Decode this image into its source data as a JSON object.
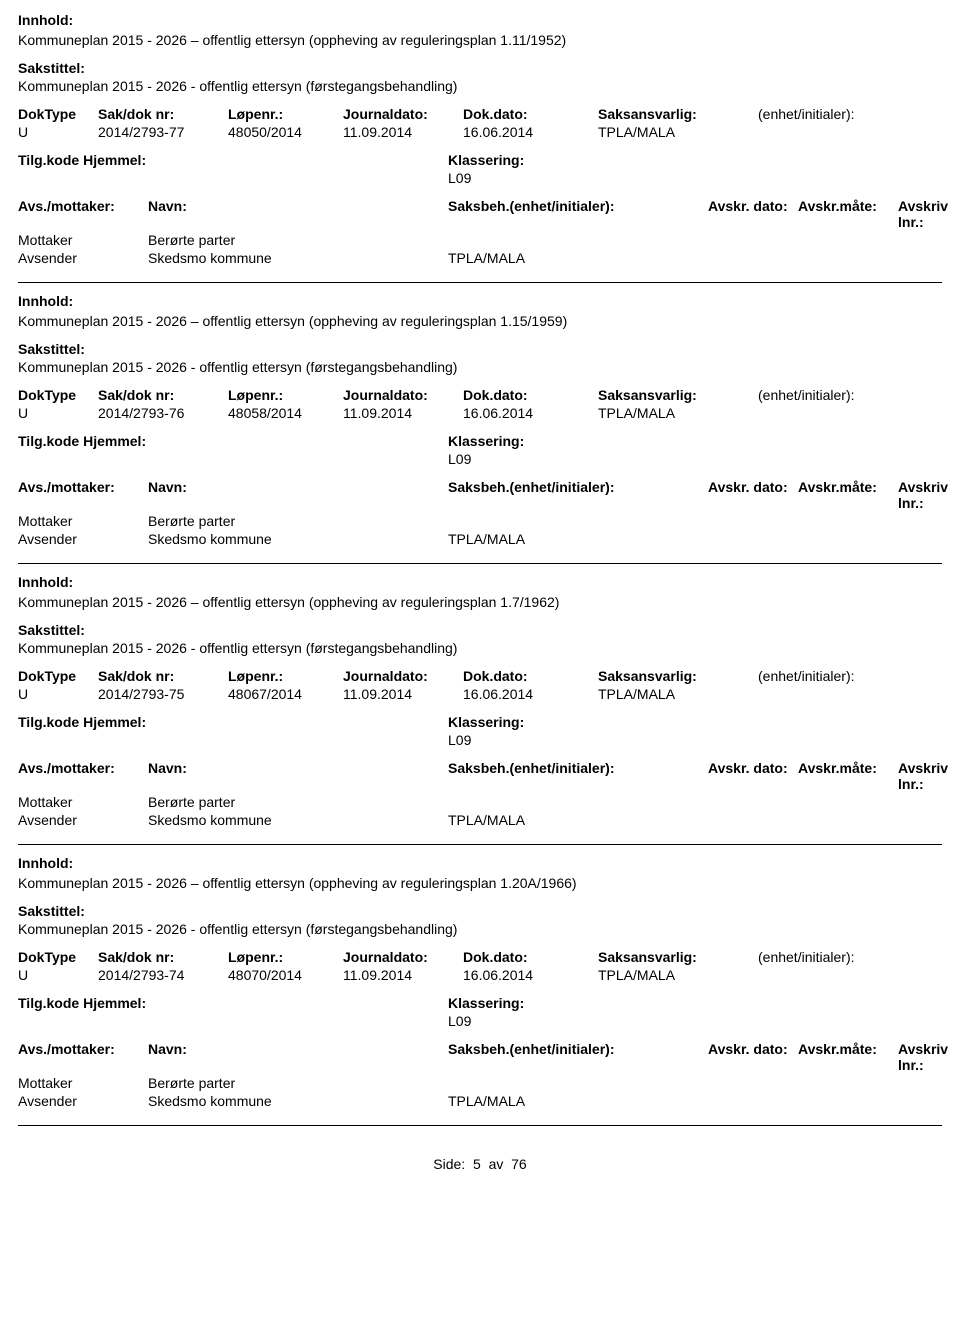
{
  "labels": {
    "innhold": "Innhold:",
    "sakstittel": "Sakstittel:",
    "doktype": "DokType",
    "sakdok": "Sak/dok nr:",
    "lopenr": "Løpenr.:",
    "journaldato": "Journaldato:",
    "dokdato": "Dok.dato:",
    "saksansvarlig": "Saksansvarlig:",
    "enhet": "(enhet/initialer):",
    "tilgkode": "Tilg.kode",
    "hjemmel": "Hjemmel:",
    "klassering": "Klassering:",
    "avsmottaker": "Avs./mottaker:",
    "navn": "Navn:",
    "saksbeh": "Saksbeh.(enhet/initialer):",
    "avskrdato": "Avskr. dato:",
    "avskrmate": "Avskr.måte:",
    "avskrivlnr": "Avskriv lnr.:",
    "mottaker": "Mottaker",
    "avsender": "Avsender"
  },
  "pager": {
    "prefix": "Side:",
    "current": "5",
    "sep": "av",
    "total": "76"
  },
  "entries": [
    {
      "innhold": "Kommuneplan 2015 - 2026 – offentlig ettersyn (oppheving av reguleringsplan 1.11/1952)",
      "sakstittel": "Kommuneplan 2015 - 2026 - offentlig ettersyn (førstegangsbehandling)",
      "doktype": "U",
      "sakdok": "2014/2793-77",
      "lopenr": "48050/2014",
      "journaldato": "11.09.2014",
      "dokdato": "16.06.2014",
      "saksansvarlig": "TPLA/MALA",
      "klassering": "L09",
      "mottaker_navn": "Berørte parter",
      "avsender_navn": "Skedsmo kommune",
      "avsender_enhet": "TPLA/MALA"
    },
    {
      "innhold": "Kommuneplan 2015 - 2026 – offentlig ettersyn (oppheving av reguleringsplan 1.15/1959)",
      "sakstittel": "Kommuneplan 2015 - 2026 - offentlig ettersyn (førstegangsbehandling)",
      "doktype": "U",
      "sakdok": "2014/2793-76",
      "lopenr": "48058/2014",
      "journaldato": "11.09.2014",
      "dokdato": "16.06.2014",
      "saksansvarlig": "TPLA/MALA",
      "klassering": "L09",
      "mottaker_navn": "Berørte parter",
      "avsender_navn": "Skedsmo kommune",
      "avsender_enhet": "TPLA/MALA"
    },
    {
      "innhold": "Kommuneplan 2015 - 2026 – offentlig ettersyn (oppheving av reguleringsplan 1.7/1962)",
      "sakstittel": "Kommuneplan 2015 - 2026 - offentlig ettersyn (førstegangsbehandling)",
      "doktype": "U",
      "sakdok": "2014/2793-75",
      "lopenr": "48067/2014",
      "journaldato": "11.09.2014",
      "dokdato": "16.06.2014",
      "saksansvarlig": "TPLA/MALA",
      "klassering": "L09",
      "mottaker_navn": "Berørte parter",
      "avsender_navn": "Skedsmo kommune",
      "avsender_enhet": "TPLA/MALA"
    },
    {
      "innhold": "Kommuneplan 2015 - 2026 – offentlig ettersyn (oppheving av reguleringsplan 1.20A/1966)",
      "sakstittel": "Kommuneplan 2015 - 2026 - offentlig ettersyn (førstegangsbehandling)",
      "doktype": "U",
      "sakdok": "2014/2793-74",
      "lopenr": "48070/2014",
      "journaldato": "11.09.2014",
      "dokdato": "16.06.2014",
      "saksansvarlig": "TPLA/MALA",
      "klassering": "L09",
      "mottaker_navn": "Berørte parter",
      "avsender_navn": "Skedsmo kommune",
      "avsender_enhet": "TPLA/MALA"
    }
  ]
}
